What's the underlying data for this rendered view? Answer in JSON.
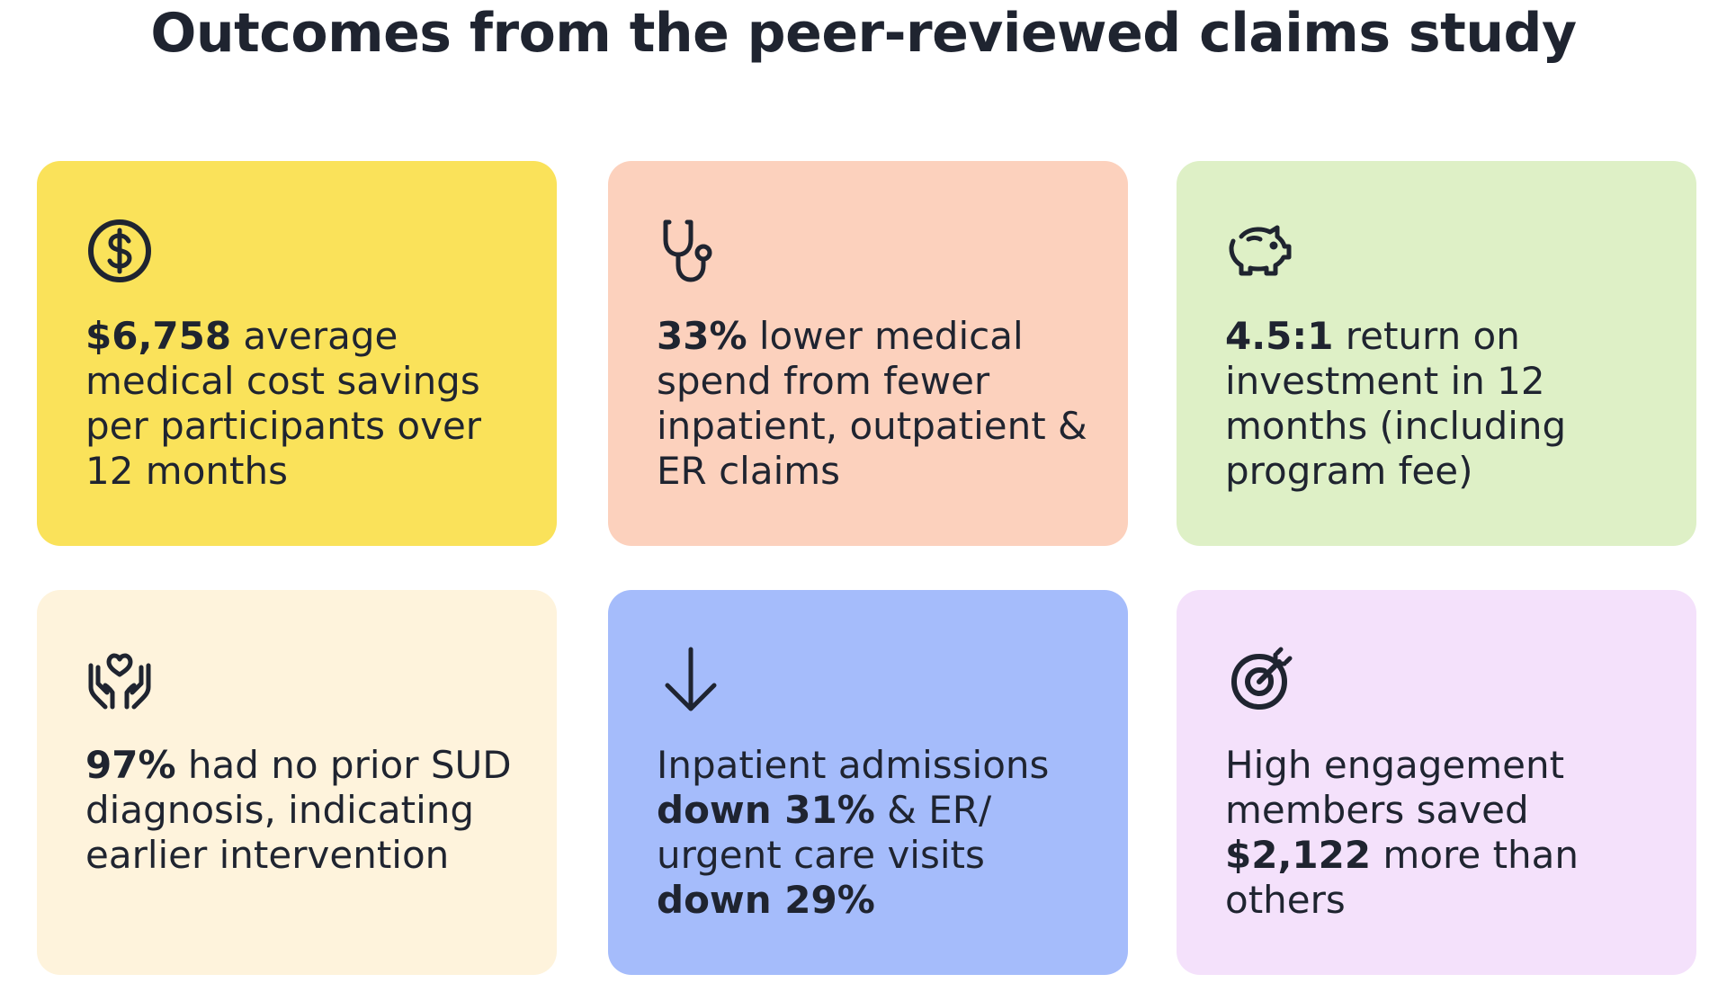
{
  "title": "Outcomes from the peer-reviewed claims study",
  "cards": [
    {
      "color": "#fae25a",
      "icon": "dollar-coin-icon",
      "parts": [
        {
          "bold": "$6,758"
        },
        {
          "text": " average medical cost savings per participants over 12 months"
        }
      ]
    },
    {
      "color": "#fcd1bd",
      "icon": "stethoscope-icon",
      "parts": [
        {
          "bold": "33%"
        },
        {
          "text": " lower medical spend from fewer inpatient, outpatient & ER claims"
        }
      ]
    },
    {
      "color": "#def0c6",
      "icon": "piggy-bank-icon",
      "parts": [
        {
          "bold": "4.5:1"
        },
        {
          "text": " return on investment in 12 months (including program fee)"
        }
      ]
    },
    {
      "color": "#fef3dc",
      "icon": "hands-heart-icon",
      "parts": [
        {
          "bold": "97%"
        },
        {
          "text": " had no prior SUD diagnosis, indicating earlier intervention"
        }
      ]
    },
    {
      "color": "#a5bcfb",
      "icon": "arrow-down-icon",
      "parts": [
        {
          "text": "Inpatient admissions "
        },
        {
          "bold": "down 31%"
        },
        {
          "text": " & ER/ urgent care visits "
        },
        {
          "bold": "down 29%"
        }
      ]
    },
    {
      "color": "#f4e1fb",
      "icon": "target-icon",
      "parts": [
        {
          "text": "High engagement members saved "
        },
        {
          "bold": "$2,122"
        },
        {
          "text": " more than others"
        }
      ]
    }
  ]
}
